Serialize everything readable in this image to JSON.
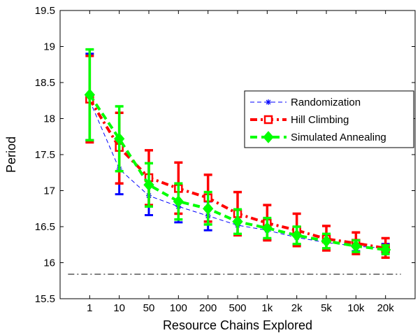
{
  "chart_data": {
    "type": "line",
    "title": "",
    "xlabel": "Resource Chains Explored",
    "ylabel": "Period",
    "categories": [
      "1",
      "10",
      "50",
      "100",
      "200",
      "500",
      "1k",
      "2k",
      "5k",
      "10k",
      "20k"
    ],
    "yticks": [
      "15.5",
      "16",
      "16.5",
      "17",
      "17.5",
      "18",
      "18.5",
      "19",
      "19.5"
    ],
    "ylim": [
      15.5,
      19.5
    ],
    "grid": false,
    "legend_position": "right",
    "reference_line": {
      "y": 15.84,
      "style": "dash-dot",
      "color": "#000000"
    },
    "series": [
      {
        "name": "Randomization",
        "color": "#0000ff",
        "marker": "asterisk",
        "line_style": "dashed-thin",
        "values": [
          18.25,
          17.3,
          16.93,
          16.78,
          16.65,
          16.52,
          16.45,
          16.35,
          16.28,
          16.23,
          16.2
        ],
        "err_lo": [
          0.55,
          0.35,
          0.27,
          0.22,
          0.2,
          0.14,
          0.13,
          0.1,
          0.08,
          0.07,
          0.06
        ],
        "err_hi": [
          0.65,
          0.35,
          0.28,
          0.22,
          0.2,
          0.14,
          0.13,
          0.1,
          0.08,
          0.07,
          0.06
        ]
      },
      {
        "name": "Hill Climbing",
        "color": "#ff0000",
        "marker": "square",
        "line_style": "dash-dot-thick",
        "values": [
          18.27,
          17.6,
          17.18,
          17.03,
          16.9,
          16.68,
          16.55,
          16.45,
          16.33,
          16.27,
          16.2
        ],
        "err_lo": [
          0.6,
          0.5,
          0.38,
          0.35,
          0.33,
          0.3,
          0.24,
          0.22,
          0.16,
          0.15,
          0.13
        ],
        "err_hi": [
          0.6,
          0.48,
          0.38,
          0.36,
          0.32,
          0.3,
          0.25,
          0.23,
          0.18,
          0.15,
          0.14
        ]
      },
      {
        "name": "Simulated Annealing",
        "color": "#00ff00",
        "marker": "diamond",
        "line_style": "dashed-thick",
        "values": [
          18.33,
          17.72,
          17.08,
          16.85,
          16.75,
          16.57,
          16.48,
          16.38,
          16.3,
          16.23,
          16.18
        ],
        "err_lo": [
          0.63,
          0.45,
          0.3,
          0.25,
          0.22,
          0.17,
          0.14,
          0.12,
          0.1,
          0.08,
          0.06
        ],
        "err_hi": [
          0.63,
          0.45,
          0.3,
          0.25,
          0.23,
          0.17,
          0.14,
          0.12,
          0.1,
          0.08,
          0.06
        ]
      }
    ]
  }
}
